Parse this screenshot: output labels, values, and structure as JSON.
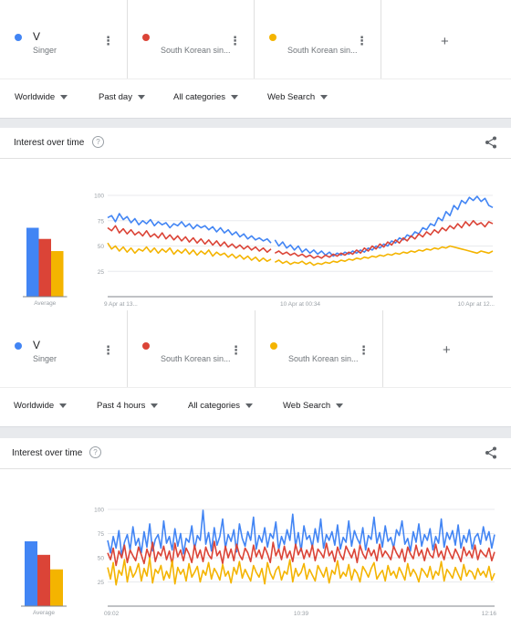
{
  "colors": {
    "blue": "#4285f4",
    "red": "#db4437",
    "yellow": "#f4b400",
    "grid": "#e8eaed",
    "axis": "#80868b",
    "tick": "#9aa0a6"
  },
  "panels": [
    {
      "terms": [
        {
          "name": "V",
          "sub": "Singer",
          "color": "#4285f4"
        },
        {
          "name": "",
          "sub": "South Korean sin...",
          "color": "#db4437"
        },
        {
          "name": "",
          "sub": "South Korean sin...",
          "color": "#f4b400"
        }
      ],
      "add_icon": "plus-icon",
      "filters": {
        "region": "Worldwide",
        "time": "Past day",
        "category": "All categories",
        "search_type": "Web Search"
      },
      "card_title": "Interest over time"
    },
    {
      "terms": [
        {
          "name": "V",
          "sub": "Singer",
          "color": "#4285f4"
        },
        {
          "name": "",
          "sub": "South Korean sin...",
          "color": "#db4437"
        },
        {
          "name": "",
          "sub": "South Korean sin...",
          "color": "#f4b400"
        }
      ],
      "add_icon": "plus-icon",
      "filters": {
        "region": "Worldwide",
        "time": "Past 4 hours",
        "category": "All categories",
        "search_type": "Web Search"
      },
      "card_title": "Interest over time"
    }
  ],
  "chart_data": [
    {
      "type": "line",
      "title": "Interest over time",
      "average": {
        "label": "Average",
        "values": [
          68,
          57,
          45
        ]
      },
      "yticks": [
        25,
        50,
        75,
        100
      ],
      "ylim": [
        0,
        100
      ],
      "xticks": [
        "9 Apr at 13...",
        "10 Apr at 00:34",
        "10 Apr at 12..."
      ],
      "gap_after_fraction": 0.425,
      "series": [
        {
          "color": "#4285f4",
          "values": [
            78,
            80,
            74,
            82,
            76,
            79,
            73,
            77,
            71,
            75,
            72,
            76,
            70,
            74,
            71,
            73,
            68,
            72,
            70,
            74,
            69,
            72,
            67,
            71,
            68,
            70,
            66,
            69,
            64,
            68,
            63,
            66,
            61,
            64,
            59,
            62,
            57,
            60,
            56,
            58,
            55,
            57,
            53,
            56,
            50,
            54,
            48,
            51,
            46,
            50,
            44,
            47,
            43,
            46,
            42,
            45,
            41,
            44,
            40,
            43,
            41,
            44,
            42,
            45,
            43,
            46,
            44,
            48,
            46,
            50,
            48,
            52,
            50,
            55,
            53,
            58,
            56,
            61,
            59,
            64,
            62,
            68,
            66,
            72,
            70,
            78,
            75,
            84,
            80,
            90,
            86,
            95,
            92,
            98,
            95,
            99,
            94,
            97,
            90,
            88
          ]
        },
        {
          "color": "#db4437",
          "values": [
            68,
            65,
            70,
            63,
            67,
            62,
            66,
            61,
            64,
            60,
            65,
            59,
            62,
            58,
            63,
            57,
            61,
            56,
            60,
            55,
            59,
            54,
            58,
            53,
            57,
            52,
            56,
            51,
            55,
            50,
            54,
            49,
            52,
            48,
            51,
            47,
            50,
            46,
            49,
            45,
            48,
            44,
            47,
            43,
            45,
            42,
            44,
            41,
            43,
            40,
            42,
            39,
            41,
            38,
            40,
            38,
            41,
            39,
            42,
            40,
            43,
            41,
            44,
            42,
            46,
            43,
            48,
            45,
            50,
            47,
            52,
            49,
            54,
            51,
            56,
            53,
            58,
            55,
            60,
            57,
            62,
            59,
            64,
            61,
            66,
            63,
            68,
            65,
            70,
            67,
            72,
            68,
            74,
            70,
            75,
            71,
            73,
            69,
            74,
            72
          ]
        },
        {
          "color": "#f4b400",
          "values": [
            53,
            47,
            50,
            45,
            49,
            44,
            48,
            43,
            47,
            45,
            49,
            44,
            48,
            43,
            47,
            44,
            48,
            42,
            46,
            43,
            47,
            42,
            46,
            41,
            45,
            42,
            46,
            40,
            44,
            41,
            43,
            39,
            42,
            38,
            41,
            37,
            40,
            36,
            39,
            35,
            38,
            35,
            37,
            34,
            36,
            33,
            35,
            32,
            34,
            33,
            35,
            32,
            34,
            31,
            33,
            32,
            34,
            33,
            35,
            34,
            36,
            35,
            37,
            36,
            38,
            37,
            39,
            38,
            40,
            39,
            41,
            40,
            42,
            41,
            43,
            42,
            44,
            43,
            45,
            44,
            46,
            45,
            47,
            46,
            48,
            47,
            49,
            48,
            50,
            49,
            48,
            47,
            46,
            45,
            44,
            43,
            45,
            44,
            43,
            45
          ]
        }
      ]
    },
    {
      "type": "line",
      "title": "Interest over time",
      "average": {
        "label": "Average",
        "values": [
          67,
          53,
          38
        ]
      },
      "yticks": [
        25,
        50,
        75,
        100
      ],
      "ylim": [
        0,
        100
      ],
      "xticks": [
        "09:02",
        "10:39",
        "12:16"
      ],
      "series": [
        {
          "color": "#4285f4",
          "values": [
            68,
            55,
            72,
            60,
            78,
            52,
            66,
            74,
            58,
            82,
            63,
            70,
            55,
            77,
            61,
            85,
            57,
            69,
            74,
            60,
            88,
            65,
            72,
            58,
            80,
            62,
            75,
            54,
            70,
            66,
            83,
            59,
            73,
            68,
            99,
            64,
            76,
            57,
            81,
            63,
            72,
            90,
            60,
            74,
            67,
            79,
            56,
            85,
            70,
            62,
            77,
            68,
            92,
            59,
            73,
            66,
            81,
            61,
            75,
            70,
            87,
            58,
            72,
            64,
            79,
            68,
            95,
            62,
            76,
            57,
            83,
            69,
            73,
            61,
            80,
            66,
            90,
            60,
            74,
            68,
            77,
            63,
            84,
            59,
            71,
            66,
            88,
            62,
            78,
            70,
            64,
            81,
            58,
            73,
            69,
            92,
            65,
            76,
            61,
            83,
            67,
            71,
            60,
            79,
            73,
            88,
            64,
            70,
            57,
            77,
            66,
            85,
            62,
            74,
            68,
            80,
            58,
            72,
            65,
            90,
            61,
            76,
            69,
            78,
            63,
            84,
            60,
            73,
            66,
            79,
            59,
            71,
            75,
            64,
            82,
            68,
            77,
            60,
            74
          ]
        },
        {
          "color": "#db4437",
          "values": [
            55,
            48,
            60,
            42,
            57,
            50,
            63,
            45,
            58,
            52,
            47,
            61,
            53,
            44,
            59,
            50,
            66,
            46,
            56,
            52,
            62,
            48,
            57,
            43,
            65,
            51,
            58,
            47,
            60,
            54,
            45,
            63,
            50,
            58,
            46,
            61,
            53,
            49,
            67,
            52,
            57,
            44,
            62,
            50,
            59,
            47,
            64,
            53,
            48,
            60,
            55,
            46,
            63,
            51,
            58,
            49,
            61,
            54,
            45,
            66,
            52,
            59,
            48,
            62,
            50,
            57,
            46,
            64,
            53,
            60,
            49,
            58,
            51,
            63,
            47,
            59,
            55,
            50,
            65,
            52,
            57,
            46,
            61,
            53,
            48,
            62,
            56,
            50,
            59,
            45,
            63,
            54,
            49,
            60,
            52,
            58,
            47,
            64,
            51,
            57,
            53,
            48,
            62,
            55,
            50,
            59,
            46,
            61,
            54,
            49,
            63,
            52,
            58,
            47,
            60,
            53,
            50,
            64,
            51,
            57,
            48,
            62,
            55,
            49,
            59,
            53,
            46,
            61,
            52,
            57,
            50,
            63,
            48,
            58,
            54,
            51,
            60,
            47,
            56
          ]
        },
        {
          "color": "#f4b400",
          "values": [
            40,
            28,
            45,
            22,
            37,
            32,
            48,
            25,
            41,
            30,
            35,
            44,
            26,
            39,
            31,
            50,
            24,
            38,
            34,
            42,
            27,
            36,
            29,
            47,
            23,
            40,
            33,
            38,
            26,
            44,
            30,
            35,
            41,
            25,
            37,
            32,
            45,
            28,
            39,
            34,
            27,
            43,
            31,
            36,
            24,
            40,
            33,
            46,
            29,
            38,
            32,
            26,
            42,
            35,
            30,
            39,
            23,
            45,
            34,
            28,
            37,
            41,
            27,
            36,
            33,
            48,
            25,
            39,
            31,
            35,
            44,
            28,
            38,
            32,
            26,
            42,
            36,
            30,
            40,
            24,
            37,
            33,
            47,
            29,
            35,
            31,
            43,
            27,
            38,
            34,
            25,
            41,
            36,
            30,
            39,
            45,
            28,
            33,
            37,
            26,
            42,
            32,
            36,
            29,
            40,
            34,
            27,
            44,
            31,
            38,
            33,
            25,
            39,
            35,
            30,
            41,
            28,
            36,
            32,
            46,
            26,
            38,
            34,
            29,
            40,
            33,
            27,
            43,
            31,
            37,
            35,
            28,
            39,
            32,
            36,
            30,
            41,
            27,
            34
          ]
        }
      ]
    }
  ]
}
